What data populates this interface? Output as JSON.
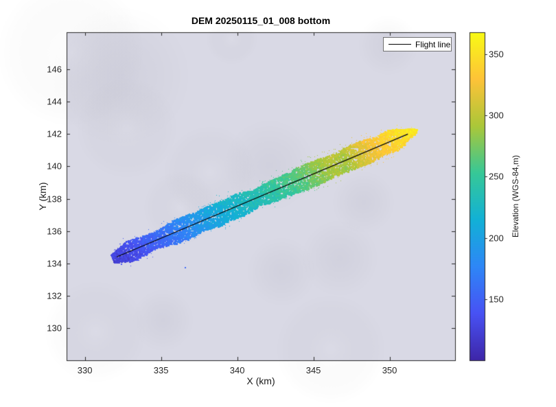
{
  "chart_data": {
    "type": "scatter",
    "title": "DEM 20250115_01_008 bottom",
    "xlabel": "X (km)",
    "ylabel": "Y (km)",
    "xlim": [
      328.8,
      354.3
    ],
    "ylim": [
      128.0,
      148.3
    ],
    "xticks": [
      330,
      335,
      340,
      345,
      350
    ],
    "yticks": [
      130,
      132,
      134,
      136,
      138,
      140,
      142,
      144,
      146
    ],
    "grid": false,
    "plot_bg": "#d9d9e5",
    "axis_color": "#262626",
    "legend": {
      "position": "top-right",
      "entries": [
        {
          "label": "Flight line",
          "type": "line",
          "color": "#000000"
        }
      ]
    },
    "colorbar": {
      "label": "Elevation (WGS-84,m)",
      "ticks": [
        150,
        200,
        250,
        300,
        350
      ],
      "clim": [
        100,
        368
      ],
      "colormap": [
        {
          "t": 0.0,
          "color": "#3e26a8"
        },
        {
          "t": 0.143,
          "color": "#4852f4"
        },
        {
          "t": 0.286,
          "color": "#2e87f7"
        },
        {
          "t": 0.429,
          "color": "#12b1d6"
        },
        {
          "t": 0.571,
          "color": "#37c897"
        },
        {
          "t": 0.714,
          "color": "#abc739"
        },
        {
          "t": 0.857,
          "color": "#fec338"
        },
        {
          "t": 1.0,
          "color": "#f9fb15"
        }
      ]
    },
    "flight_line": {
      "x": [
        332.1,
        351.2
      ],
      "y": [
        134.4,
        142.0
      ],
      "color": "#000000"
    },
    "dem_swath": {
      "seed": 7,
      "points": 8500,
      "half_width": 0.62,
      "noise_elev": 9,
      "profile_t": [
        0.0,
        0.05,
        0.1,
        0.16,
        0.22,
        0.28,
        0.34,
        0.4,
        0.46,
        0.52,
        0.58,
        0.64,
        0.7,
        0.74,
        0.78,
        0.82,
        0.88,
        0.93,
        1.0
      ],
      "profile_elev": [
        126,
        134,
        146,
        158,
        174,
        192,
        208,
        220,
        232,
        243,
        254,
        266,
        283,
        296,
        290,
        308,
        326,
        340,
        353
      ]
    },
    "outliers": [
      {
        "x": 336.6,
        "y": 133.75,
        "elev": 155
      },
      {
        "x": 332.4,
        "y": 133.95,
        "elev": 138
      }
    ]
  }
}
